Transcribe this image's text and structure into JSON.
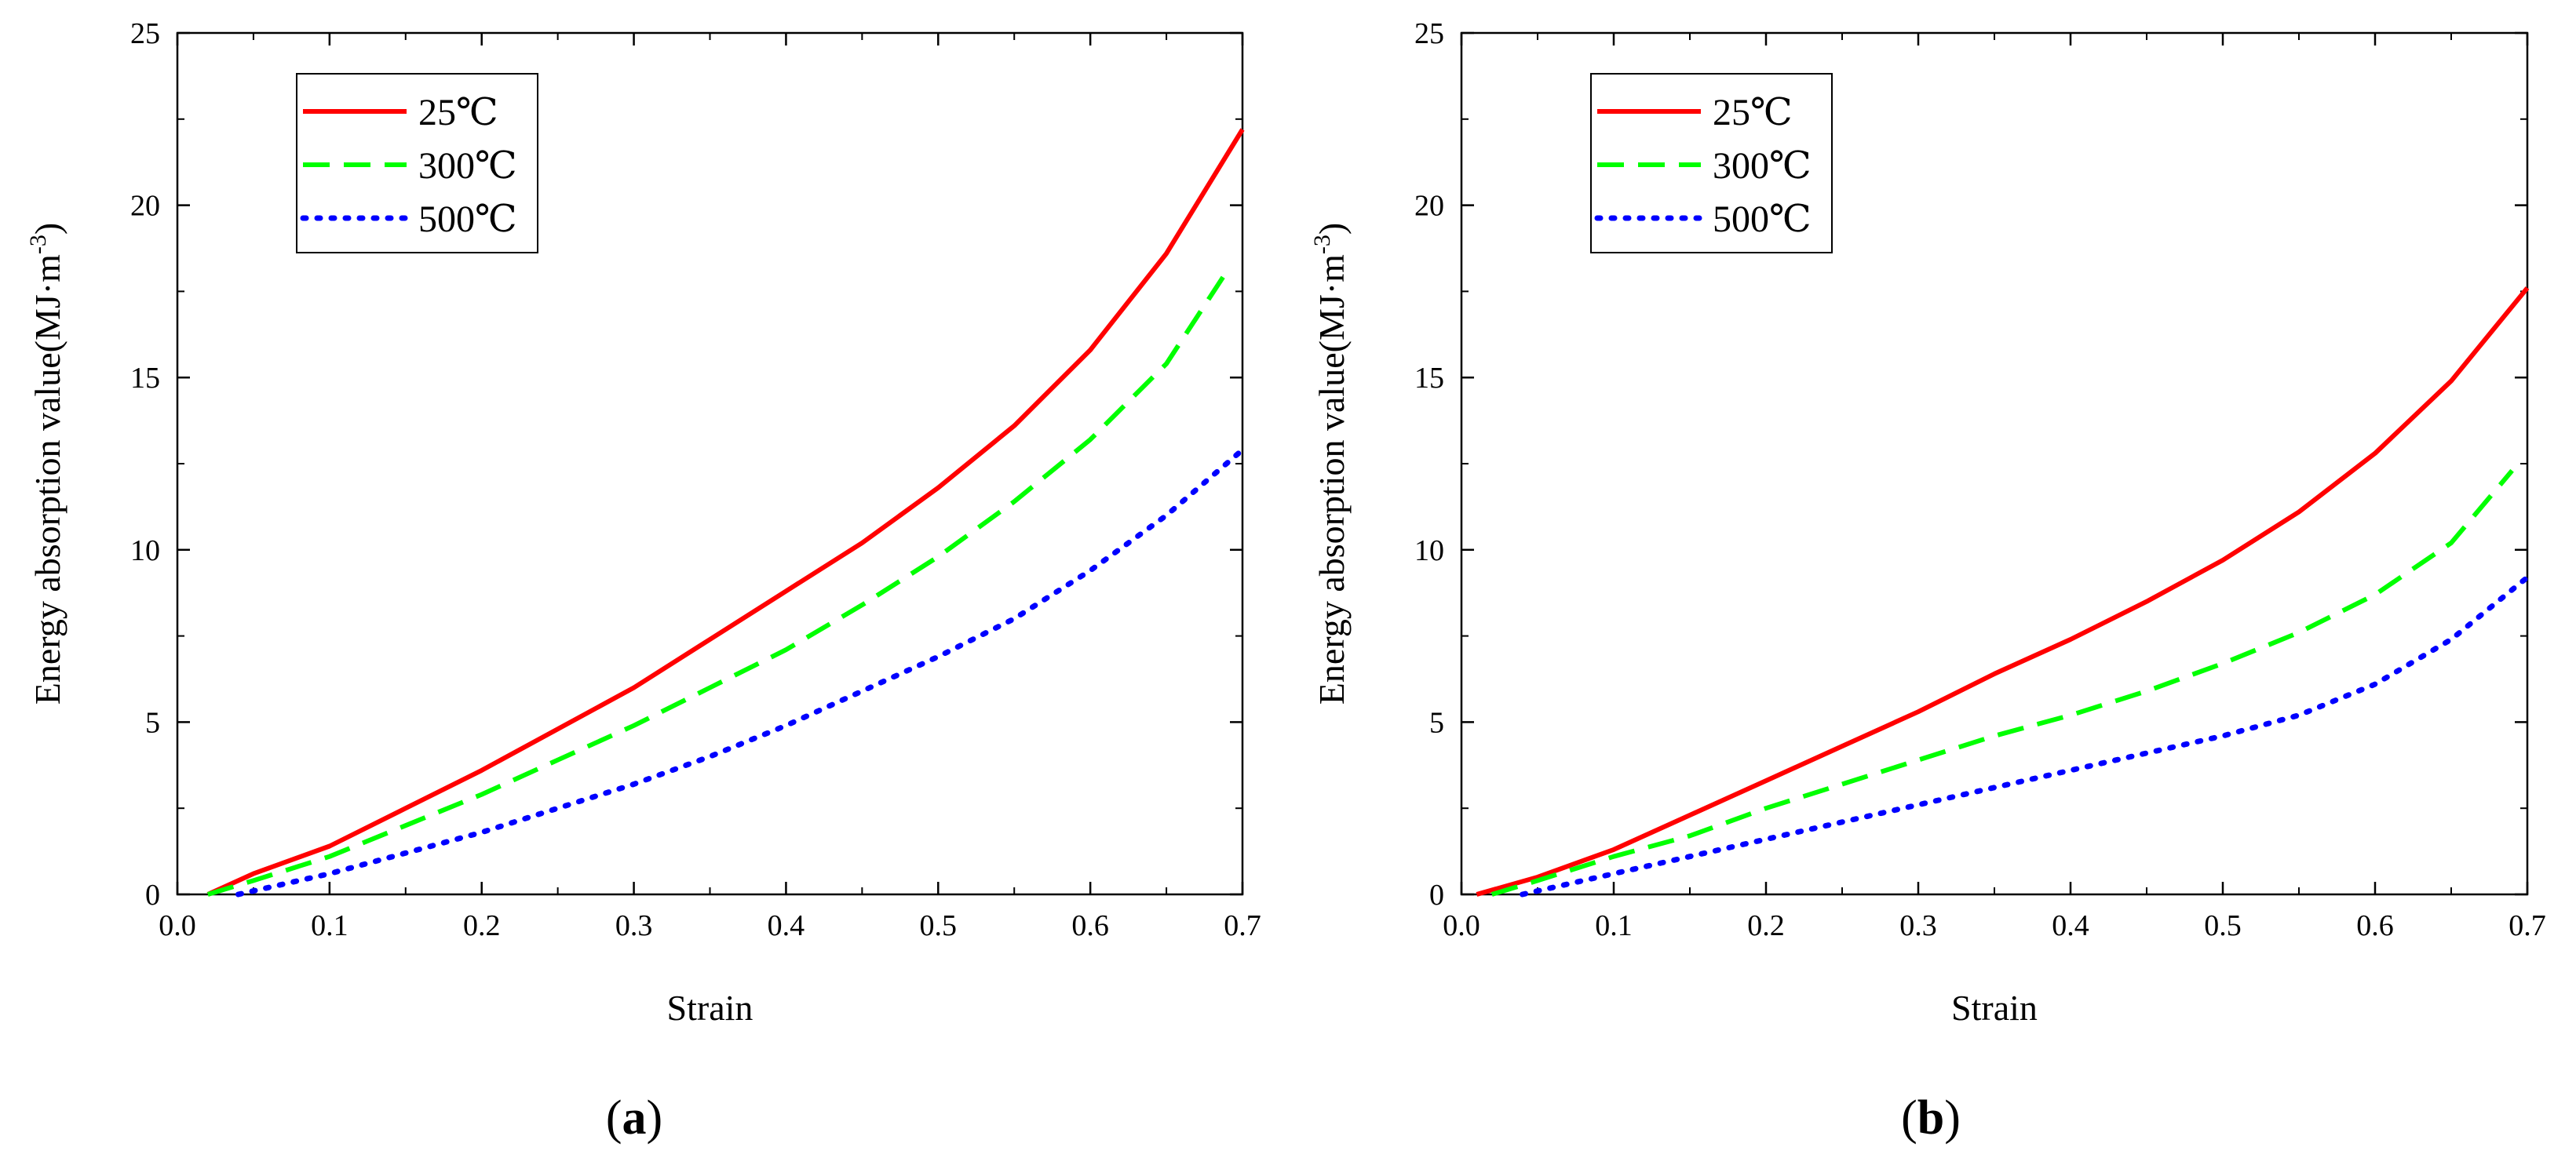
{
  "chart_data": [
    {
      "panel": "a",
      "type": "line",
      "title": "",
      "xlabel": "Strain",
      "ylabel": {
        "main": "Energy absorption value(MJ·m",
        "sup": "-3",
        "close": ")"
      },
      "xlim": [
        0,
        0.7
      ],
      "ylim": [
        0,
        25
      ],
      "xticks": [
        0,
        0.1,
        0.2,
        0.3,
        0.4,
        0.5,
        0.6,
        0.7
      ],
      "xtick_labels": [
        "0.0",
        "0.1",
        "0.2",
        "0.3",
        "0.4",
        "0.5",
        "0.6",
        "0.7"
      ],
      "yticks": [
        0,
        5,
        10,
        15,
        20,
        25
      ],
      "ytick_labels": [
        "0",
        "5",
        "10",
        "15",
        "20",
        "25"
      ],
      "grid": false,
      "legend_position": "top-left",
      "series": [
        {
          "name": "25℃",
          "color": "#ff0000",
          "style": "solid",
          "x": [
            0.02,
            0.05,
            0.1,
            0.15,
            0.2,
            0.25,
            0.3,
            0.35,
            0.4,
            0.45,
            0.5,
            0.55,
            0.6,
            0.65,
            0.7
          ],
          "y": [
            0.0,
            0.6,
            1.4,
            2.5,
            3.6,
            4.8,
            6.0,
            7.4,
            8.8,
            10.2,
            11.8,
            13.6,
            15.8,
            18.6,
            22.2
          ]
        },
        {
          "name": "300℃",
          "color": "#00ff00",
          "style": "dashed",
          "x": [
            0.02,
            0.05,
            0.1,
            0.15,
            0.2,
            0.25,
            0.3,
            0.35,
            0.4,
            0.45,
            0.5,
            0.55,
            0.6,
            0.65,
            0.69
          ],
          "y": [
            0.0,
            0.4,
            1.1,
            2.0,
            2.9,
            3.9,
            4.9,
            6.0,
            7.1,
            8.4,
            9.8,
            11.4,
            13.2,
            15.4,
            18.1
          ]
        },
        {
          "name": "500℃",
          "color": "#0000ff",
          "style": "dotted",
          "x": [
            0.04,
            0.05,
            0.1,
            0.15,
            0.2,
            0.25,
            0.3,
            0.35,
            0.4,
            0.45,
            0.5,
            0.55,
            0.6,
            0.65,
            0.7
          ],
          "y": [
            0.0,
            0.1,
            0.6,
            1.2,
            1.8,
            2.5,
            3.2,
            4.0,
            4.9,
            5.9,
            6.9,
            8.0,
            9.4,
            11.0,
            12.9
          ]
        }
      ],
      "panel_label": "a"
    },
    {
      "panel": "b",
      "type": "line",
      "title": "",
      "xlabel": "Strain",
      "ylabel": {
        "main": "Energy absorption value(MJ·m",
        "sup": "-3",
        "close": ")"
      },
      "xlim": [
        0,
        0.7
      ],
      "ylim": [
        0,
        25
      ],
      "xticks": [
        0,
        0.1,
        0.2,
        0.3,
        0.4,
        0.5,
        0.6,
        0.7
      ],
      "xtick_labels": [
        "0.0",
        "0.1",
        "0.2",
        "0.3",
        "0.4",
        "0.5",
        "0.6",
        "0.7"
      ],
      "yticks": [
        0,
        5,
        10,
        15,
        20,
        25
      ],
      "ytick_labels": [
        "0",
        "5",
        "10",
        "15",
        "20",
        "25"
      ],
      "grid": false,
      "legend_position": "top-left",
      "series": [
        {
          "name": "25℃",
          "color": "#ff0000",
          "style": "solid",
          "x": [
            0.01,
            0.05,
            0.1,
            0.15,
            0.2,
            0.25,
            0.3,
            0.35,
            0.4,
            0.45,
            0.5,
            0.55,
            0.6,
            0.65,
            0.7
          ],
          "y": [
            0.0,
            0.5,
            1.3,
            2.3,
            3.3,
            4.3,
            5.3,
            6.4,
            7.4,
            8.5,
            9.7,
            11.1,
            12.8,
            14.9,
            17.6
          ]
        },
        {
          "name": "300℃",
          "color": "#00ff00",
          "style": "dashed",
          "x": [
            0.02,
            0.05,
            0.1,
            0.15,
            0.2,
            0.25,
            0.3,
            0.35,
            0.4,
            0.45,
            0.5,
            0.55,
            0.6,
            0.65,
            0.69
          ],
          "y": [
            0.0,
            0.4,
            1.1,
            1.7,
            2.5,
            3.2,
            3.9,
            4.6,
            5.2,
            5.9,
            6.7,
            7.6,
            8.7,
            10.2,
            12.3
          ]
        },
        {
          "name": "500℃",
          "color": "#0000ff",
          "style": "dotted",
          "x": [
            0.04,
            0.05,
            0.1,
            0.15,
            0.2,
            0.25,
            0.3,
            0.35,
            0.4,
            0.45,
            0.5,
            0.55,
            0.6,
            0.65,
            0.7
          ],
          "y": [
            0.0,
            0.1,
            0.6,
            1.1,
            1.6,
            2.1,
            2.6,
            3.1,
            3.6,
            4.1,
            4.6,
            5.2,
            6.1,
            7.4,
            9.2
          ]
        }
      ],
      "panel_label": "b"
    }
  ]
}
